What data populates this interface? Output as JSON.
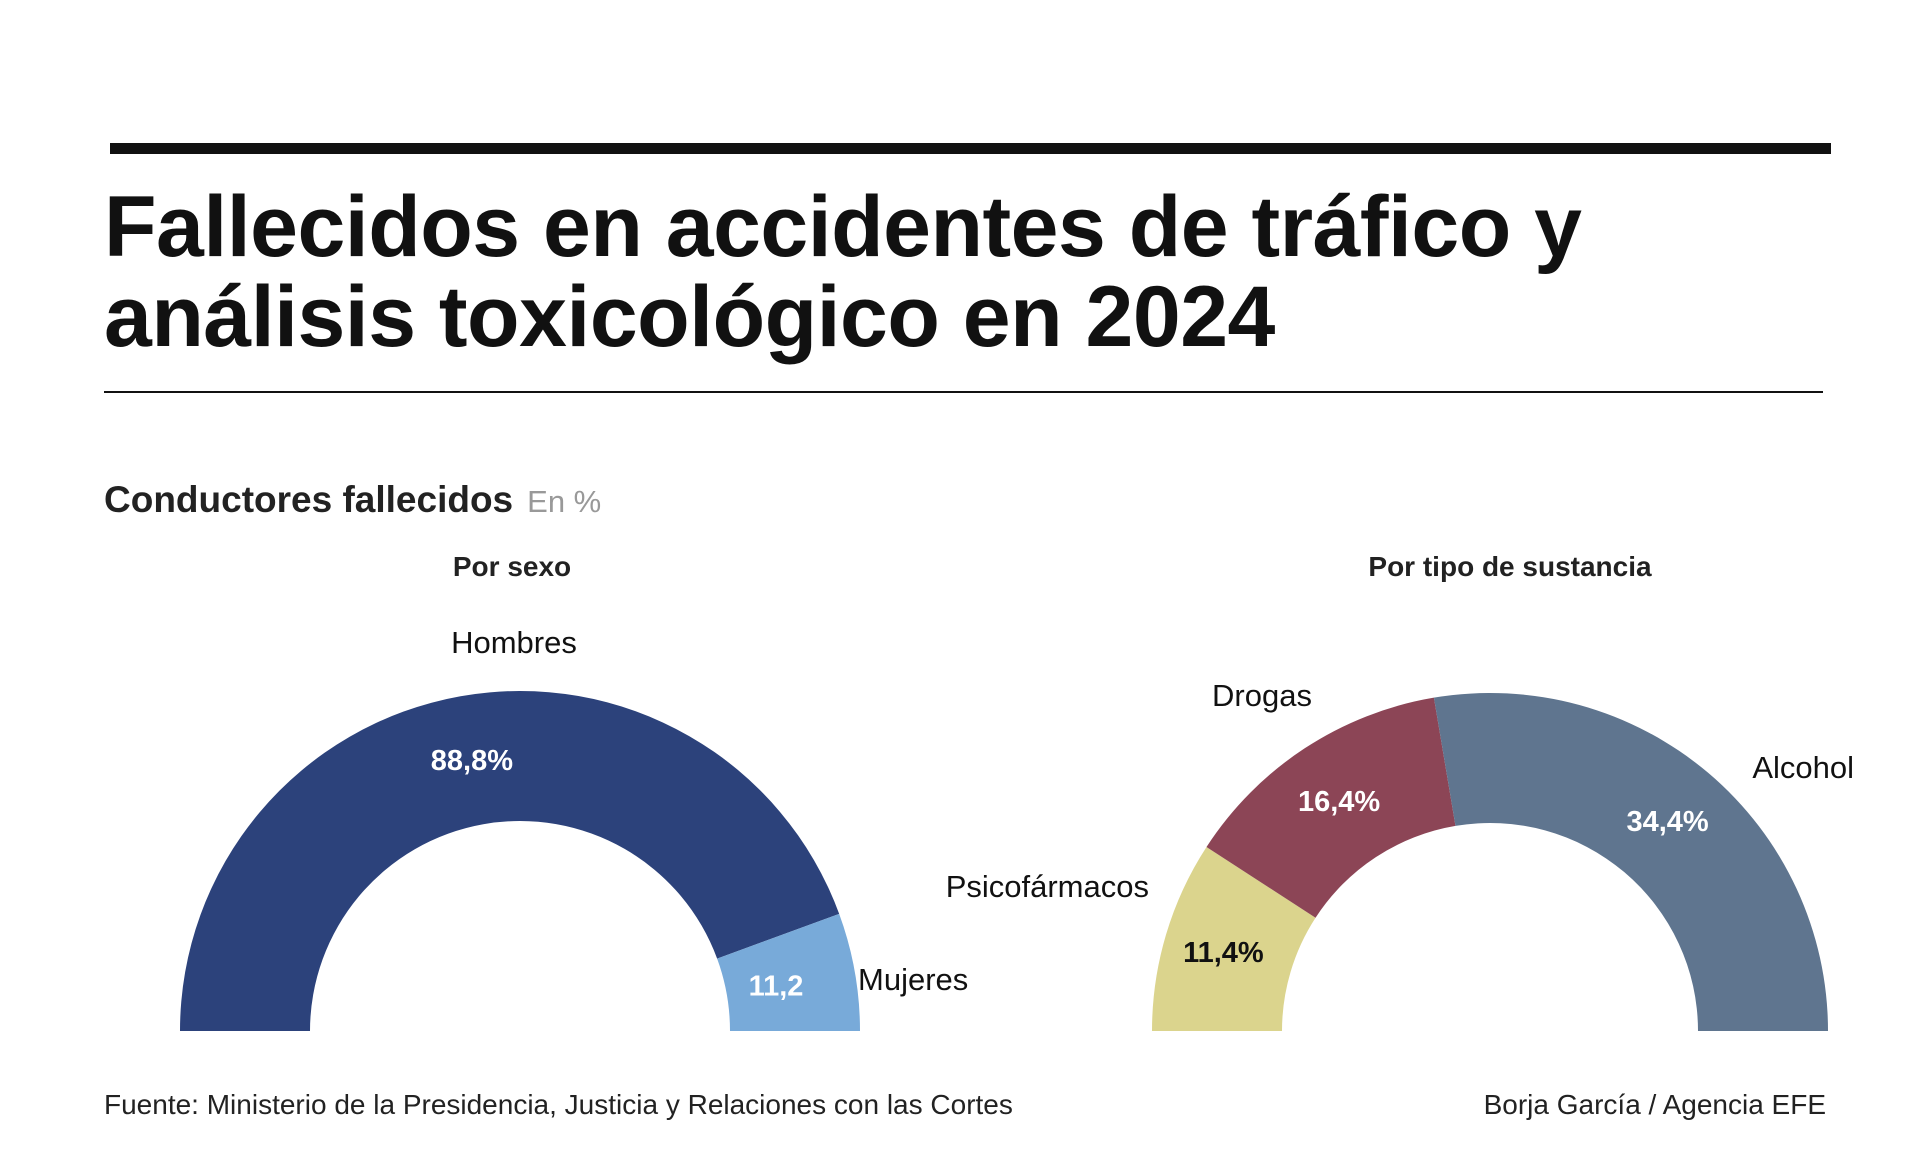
{
  "headline": {
    "line1": "Fallecidos en accidentes de tráfico y",
    "line2": "análisis toxicológico en 2024"
  },
  "section": {
    "title": "Conductores fallecidos",
    "unit": "En %"
  },
  "footer": {
    "source": "Fuente: Ministerio de la Presidencia, Justicia y Relaciones con las Cortes",
    "credit": "Borja García / Agencia EFE"
  },
  "chart_data": [
    {
      "type": "pie",
      "subtype": "semicircle-donut",
      "title": "Por sexo",
      "unit": "%",
      "categories": [
        "Hombres",
        "Mujeres"
      ],
      "values": [
        88.8,
        11.2
      ],
      "value_labels": [
        "88,8%",
        "11,2"
      ],
      "colors": [
        "#2c427b",
        "#78aad9"
      ],
      "value_label_colors": [
        "#ffffff",
        "#ffffff"
      ]
    },
    {
      "type": "pie",
      "subtype": "semicircle-donut",
      "title": "Por tipo de sustancia",
      "unit": "%",
      "categories": [
        "Psicofármacos",
        "Drogas",
        "Alcohol"
      ],
      "values": [
        11.4,
        16.4,
        34.4
      ],
      "value_labels": [
        "11,4%",
        "16,4%",
        "34,4%"
      ],
      "colors": [
        "#dbd48d",
        "#8c4556",
        "#5f758f"
      ],
      "value_label_colors": [
        "#111111",
        "#ffffff",
        "#ffffff"
      ]
    }
  ]
}
